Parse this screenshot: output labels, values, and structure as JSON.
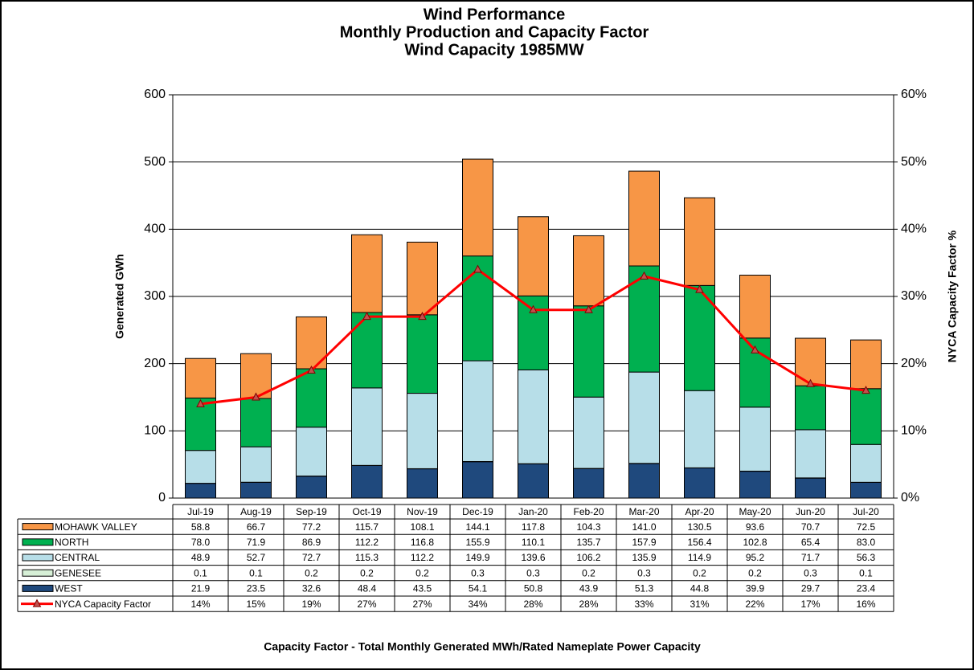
{
  "chart_data": {
    "type": "bar",
    "title": [
      "Wind Performance",
      "Monthly Production and Capacity Factor",
      "Wind Capacity 1985MW"
    ],
    "y_label": "Generated GWh",
    "y2_label": "NYCA Capacity Factor %",
    "footnote": "Capacity Factor  - Total Monthly Generated MWh/Rated Nameplate Power Capacity",
    "categories": [
      "Jul-19",
      "Aug-19",
      "Sep-19",
      "Oct-19",
      "Nov-19",
      "Dec-19",
      "Jan-20",
      "Feb-20",
      "Mar-20",
      "Apr-20",
      "May-20",
      "Jun-20",
      "Jul-20"
    ],
    "ylim": [
      0,
      600
    ],
    "yticks": [
      0,
      100,
      200,
      300,
      400,
      500,
      600
    ],
    "y2lim": [
      0,
      60
    ],
    "y2ticks": [
      {
        "value": 0,
        "label": "0%"
      },
      {
        "value": 10,
        "label": "10%"
      },
      {
        "value": 20,
        "label": "20%"
      },
      {
        "value": 30,
        "label": "30%"
      },
      {
        "value": 40,
        "label": "40%"
      },
      {
        "value": 50,
        "label": "50%"
      },
      {
        "value": 60,
        "label": "60%"
      }
    ],
    "series": [
      {
        "name": "MOHAWK VALLEY",
        "color": "#f79646",
        "values": [
          58.8,
          66.7,
          77.2,
          115.7,
          108.1,
          144.1,
          117.8,
          104.3,
          141.0,
          130.5,
          93.6,
          70.7,
          72.5
        ],
        "value_labels": [
          "58.8",
          "66.7",
          "77.2",
          "115.7",
          "108.1",
          "144.1",
          "117.8",
          "104.3",
          "141.0",
          "130.5",
          "93.6",
          "70.7",
          "72.5"
        ]
      },
      {
        "name": "NORTH",
        "color": "#00b050",
        "values": [
          78.0,
          71.9,
          86.9,
          112.2,
          116.8,
          155.9,
          110.1,
          135.7,
          157.9,
          156.4,
          102.8,
          65.4,
          83.0
        ],
        "value_labels": [
          "78.0",
          "71.9",
          "86.9",
          "112.2",
          "116.8",
          "155.9",
          "110.1",
          "135.7",
          "157.9",
          "156.4",
          "102.8",
          "65.4",
          "83.0"
        ]
      },
      {
        "name": "CENTRAL",
        "color": "#b7dee8",
        "values": [
          48.9,
          52.7,
          72.7,
          115.3,
          112.2,
          149.9,
          139.6,
          106.2,
          135.9,
          114.9,
          95.2,
          71.7,
          56.3
        ],
        "value_labels": [
          "48.9",
          "52.7",
          "72.7",
          "115.3",
          "112.2",
          "149.9",
          "139.6",
          "106.2",
          "135.9",
          "114.9",
          "95.2",
          "71.7",
          "56.3"
        ]
      },
      {
        "name": "GENESEE",
        "color": "#d7f0d7",
        "values": [
          0.1,
          0.1,
          0.2,
          0.2,
          0.2,
          0.3,
          0.3,
          0.2,
          0.3,
          0.2,
          0.2,
          0.3,
          0.1
        ],
        "value_labels": [
          "0.1",
          "0.1",
          "0.2",
          "0.2",
          "0.2",
          "0.3",
          "0.3",
          "0.2",
          "0.3",
          "0.2",
          "0.2",
          "0.3",
          "0.1"
        ]
      },
      {
        "name": "WEST",
        "color": "#1f497d",
        "values": [
          21.9,
          23.5,
          32.6,
          48.4,
          43.5,
          54.1,
          50.8,
          43.9,
          51.3,
          44.8,
          39.9,
          29.7,
          23.4
        ],
        "value_labels": [
          "21.9",
          "23.5",
          "32.6",
          "48.4",
          "43.5",
          "54.1",
          "50.8",
          "43.9",
          "51.3",
          "44.8",
          "39.9",
          "29.7",
          "23.4"
        ]
      },
      {
        "name": "NYCA Capacity Factor",
        "color": "#ff0000",
        "axis": "y2",
        "type": "line",
        "values": [
          14,
          15,
          19,
          27,
          27,
          34,
          28,
          28,
          33,
          31,
          22,
          17,
          16
        ],
        "value_labels": [
          "14%",
          "15%",
          "19%",
          "27%",
          "27%",
          "34%",
          "28%",
          "28%",
          "33%",
          "31%",
          "22%",
          "17%",
          "16%"
        ]
      }
    ]
  }
}
